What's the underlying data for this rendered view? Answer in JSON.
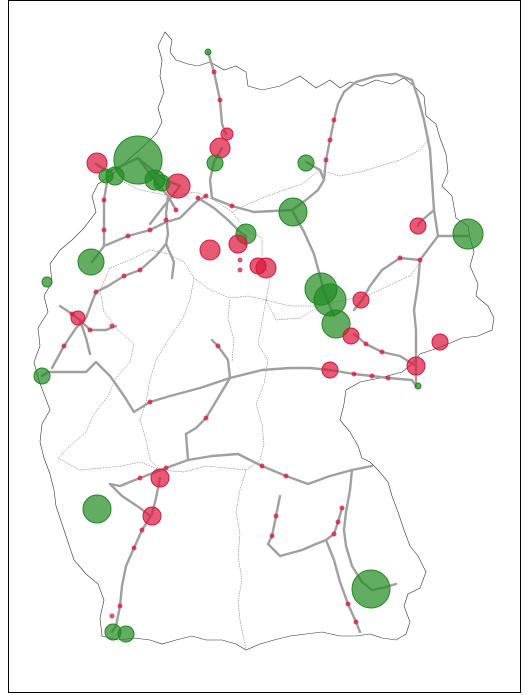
{
  "map": {
    "colors": {
      "frame": "#000000",
      "borders": "#333333",
      "lines": "#a0a0a0",
      "export": "#1f8a1f",
      "import": "#dc143c"
    },
    "nodes": [
      {
        "id": "n1",
        "type": "export",
        "size": 3
      },
      {
        "id": "n2",
        "type": "import",
        "size": 6
      },
      {
        "id": "n3",
        "type": "import",
        "size": 10
      },
      {
        "id": "n4",
        "type": "export",
        "size": 8
      },
      {
        "id": "n5",
        "type": "export",
        "size": 8
      },
      {
        "id": "n6",
        "type": "export",
        "size": 24
      },
      {
        "id": "n7",
        "type": "import",
        "size": 10
      },
      {
        "id": "n8",
        "type": "export",
        "size": 9
      },
      {
        "id": "n9",
        "type": "export",
        "size": 10
      },
      {
        "id": "n10",
        "type": "import",
        "size": 12
      },
      {
        "id": "n11",
        "type": "export",
        "size": 8
      },
      {
        "id": "n12",
        "type": "export",
        "size": 7
      },
      {
        "id": "n13",
        "type": "export",
        "size": 14
      },
      {
        "id": "n14",
        "type": "import",
        "size": 8
      },
      {
        "id": "n15",
        "type": "export",
        "size": 15
      },
      {
        "id": "n16",
        "type": "export",
        "size": 13
      },
      {
        "id": "n17",
        "type": "export",
        "size": 5
      },
      {
        "id": "n18",
        "type": "import",
        "size": 7
      },
      {
        "id": "n19",
        "type": "export",
        "size": 10
      },
      {
        "id": "n20",
        "type": "import",
        "size": 10
      },
      {
        "id": "n21",
        "type": "import",
        "size": 9
      },
      {
        "id": "n22",
        "type": "import",
        "size": 10
      },
      {
        "id": "n23",
        "type": "import",
        "size": 8
      },
      {
        "id": "n24",
        "type": "export",
        "size": 16
      },
      {
        "id": "n25",
        "type": "export",
        "size": 16
      },
      {
        "id": "n26",
        "type": "export",
        "size": 14
      },
      {
        "id": "n27",
        "type": "import",
        "size": 8
      },
      {
        "id": "n28",
        "type": "import",
        "size": 8
      },
      {
        "id": "n29",
        "type": "import",
        "size": 8
      },
      {
        "id": "n30",
        "type": "export",
        "size": 8
      },
      {
        "id": "n31",
        "type": "import",
        "size": 9
      },
      {
        "id": "n32",
        "type": "import",
        "size": 8
      },
      {
        "id": "n33",
        "type": "export",
        "size": 14
      },
      {
        "id": "n34",
        "type": "import",
        "size": 9
      },
      {
        "id": "n35",
        "type": "import",
        "size": 9
      },
      {
        "id": "n36",
        "type": "export",
        "size": 19
      },
      {
        "id": "n37",
        "type": "export",
        "size": 8
      },
      {
        "id": "n38",
        "type": "export",
        "size": 8
      },
      {
        "id": "n39",
        "type": "export",
        "size": 3
      }
    ]
  }
}
